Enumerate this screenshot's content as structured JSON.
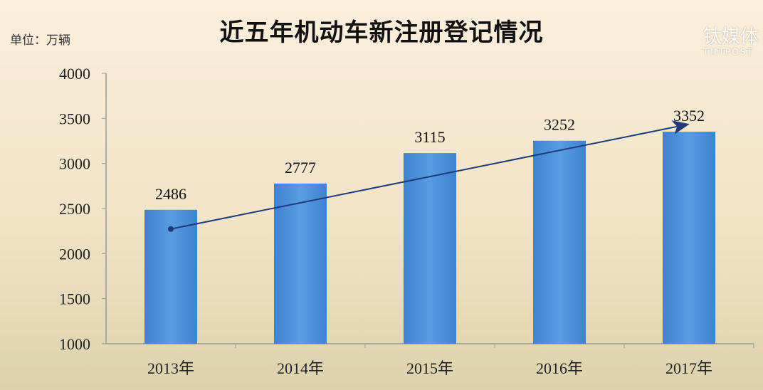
{
  "chart_data": {
    "type": "bar",
    "title": "近五年机动车新注册登记情况",
    "ylabel": "单位：万辆",
    "xlabel": "",
    "categories": [
      "2013年",
      "2014年",
      "2015年",
      "2016年",
      "2017年"
    ],
    "values": [
      2486,
      2777,
      3115,
      3252,
      3352
    ],
    "data_labels": [
      "2486",
      "2777",
      "3115",
      "3252",
      "3352"
    ],
    "ylim": [
      1000,
      4000
    ],
    "yticks": [
      "1000",
      "1500",
      "2000",
      "2500",
      "3000",
      "3500",
      "4000"
    ],
    "grid": false,
    "legend": "none",
    "trend_arrow": {
      "from": "2013年",
      "to": "2017年"
    },
    "colors": {
      "bar": "#4a8fd8",
      "arrow": "#1f3a7a"
    }
  },
  "watermark": {
    "text": "钛媒体",
    "sub": "TMTPOST"
  }
}
